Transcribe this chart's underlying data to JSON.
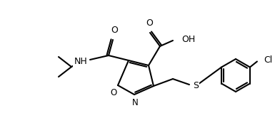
{
  "bg_color": "#ffffff",
  "line_color": "#000000",
  "line_width": 1.5,
  "font_size": 9,
  "figsize": [
    3.92,
    1.66
  ],
  "dpi": 100,
  "xlim": [
    0,
    392
  ],
  "ylim": [
    0,
    166
  ]
}
